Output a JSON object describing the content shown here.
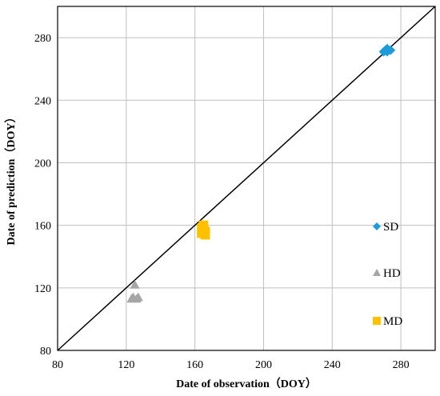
{
  "chart_data": {
    "type": "scatter",
    "xlabel": "Date of observation（DOY）",
    "ylabel": "Date of prediction（DOY）",
    "xlim": [
      80,
      300
    ],
    "ylim": [
      80,
      300
    ],
    "xticks": [
      80,
      120,
      160,
      200,
      240,
      280
    ],
    "yticks": [
      80,
      120,
      160,
      200,
      240,
      280
    ],
    "grid": "vertical and horizontal major gridlines",
    "reference_line": "1:1",
    "legend_position": "right-inside",
    "series": [
      {
        "name": "SD",
        "marker": "diamond",
        "color": "#1f9bd7",
        "points": [
          [
            270,
            271
          ],
          [
            271,
            272
          ],
          [
            272,
            271
          ],
          [
            274,
            272
          ],
          [
            272,
            273
          ]
        ]
      },
      {
        "name": "HD",
        "marker": "triangle",
        "color": "#a6a6a6",
        "points": [
          [
            123,
            113
          ],
          [
            124,
            114
          ],
          [
            125,
            122
          ],
          [
            126,
            113
          ],
          [
            127,
            114
          ]
        ]
      },
      {
        "name": "MD",
        "marker": "square",
        "color": "#ffc000",
        "points": [
          [
            164,
            155
          ],
          [
            165,
            157
          ],
          [
            165,
            160
          ],
          [
            166,
            154
          ],
          [
            166,
            156
          ],
          [
            164,
            158
          ]
        ]
      }
    ]
  }
}
